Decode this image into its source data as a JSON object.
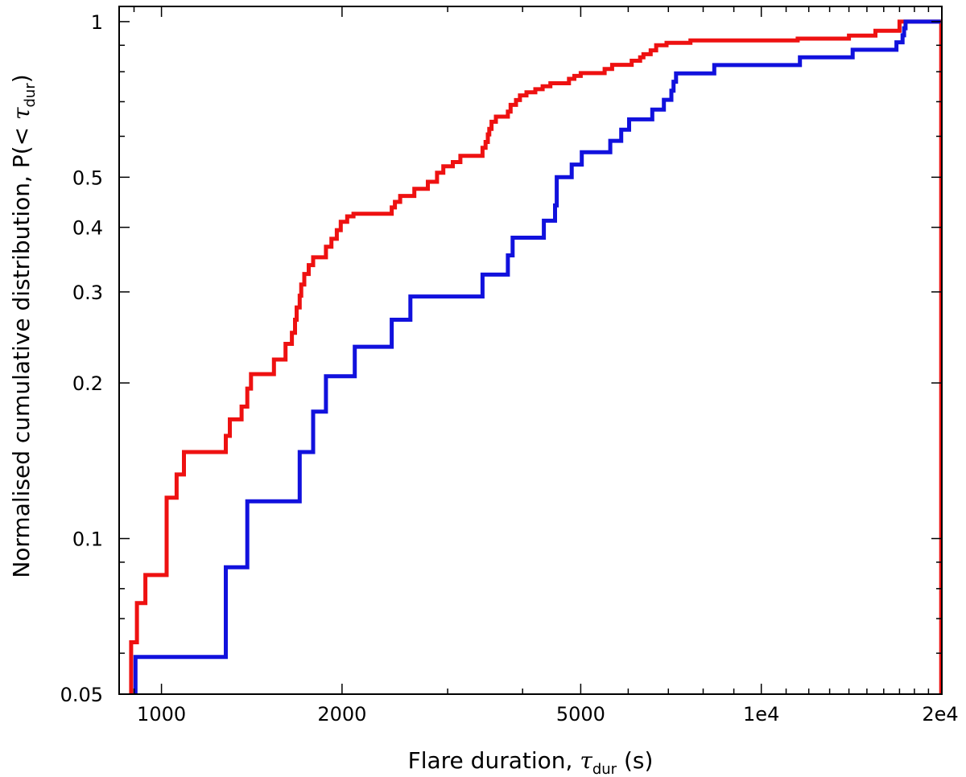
{
  "chart_data": {
    "type": "line",
    "step": true,
    "xscale": "log",
    "yscale": "log",
    "xlim": [
      850,
      20000
    ],
    "ylim": [
      0.05,
      1.07
    ],
    "x_ticks": [
      {
        "value": 1000,
        "label": "1000"
      },
      {
        "value": 2000,
        "label": "2000"
      },
      {
        "value": 5000,
        "label": "5000"
      },
      {
        "value": 10000,
        "label": "1e4"
      },
      {
        "value": 20000,
        "label": "2e4"
      }
    ],
    "y_ticks": [
      {
        "value": 0.05,
        "label": "0.05"
      },
      {
        "value": 0.1,
        "label": "0.1"
      },
      {
        "value": 0.2,
        "label": "0.2"
      },
      {
        "value": 0.3,
        "label": "0.3"
      },
      {
        "value": 0.4,
        "label": "0.4"
      },
      {
        "value": 0.5,
        "label": "0.5"
      },
      {
        "value": 1,
        "label": "1"
      }
    ],
    "xlabel": {
      "prefix": "Flare duration, ",
      "symbol": "τ",
      "subscript": "dur",
      "suffix": " (s)"
    },
    "ylabel": {
      "prefix": "Normalised cumulative distribution, P(< ",
      "symbol": "τ",
      "subscript": "dur",
      "suffix": ")"
    },
    "series": [
      {
        "color": "#ee1111",
        "points": [
          [
            890,
            0.05
          ],
          [
            890,
            0.063
          ],
          [
            910,
            0.063
          ],
          [
            910,
            0.075
          ],
          [
            940,
            0.075
          ],
          [
            940,
            0.085
          ],
          [
            1020,
            0.085
          ],
          [
            1020,
            0.12
          ],
          [
            1060,
            0.12
          ],
          [
            1060,
            0.133
          ],
          [
            1090,
            0.133
          ],
          [
            1090,
            0.147
          ],
          [
            1280,
            0.147
          ],
          [
            1280,
            0.158
          ],
          [
            1300,
            0.158
          ],
          [
            1300,
            0.17
          ],
          [
            1360,
            0.17
          ],
          [
            1360,
            0.18
          ],
          [
            1390,
            0.18
          ],
          [
            1390,
            0.195
          ],
          [
            1410,
            0.195
          ],
          [
            1410,
            0.208
          ],
          [
            1540,
            0.208
          ],
          [
            1540,
            0.222
          ],
          [
            1610,
            0.222
          ],
          [
            1610,
            0.238
          ],
          [
            1650,
            0.238
          ],
          [
            1650,
            0.25
          ],
          [
            1670,
            0.25
          ],
          [
            1670,
            0.265
          ],
          [
            1680,
            0.265
          ],
          [
            1680,
            0.28
          ],
          [
            1700,
            0.28
          ],
          [
            1700,
            0.295
          ],
          [
            1710,
            0.295
          ],
          [
            1710,
            0.31
          ],
          [
            1730,
            0.31
          ],
          [
            1730,
            0.325
          ],
          [
            1760,
            0.325
          ],
          [
            1760,
            0.338
          ],
          [
            1790,
            0.338
          ],
          [
            1790,
            0.35
          ],
          [
            1880,
            0.35
          ],
          [
            1880,
            0.367
          ],
          [
            1920,
            0.367
          ],
          [
            1920,
            0.38
          ],
          [
            1960,
            0.38
          ],
          [
            1960,
            0.395
          ],
          [
            1990,
            0.395
          ],
          [
            1990,
            0.41
          ],
          [
            2040,
            0.41
          ],
          [
            2040,
            0.42
          ],
          [
            2090,
            0.42
          ],
          [
            2090,
            0.425
          ],
          [
            2420,
            0.425
          ],
          [
            2420,
            0.437
          ],
          [
            2450,
            0.437
          ],
          [
            2450,
            0.448
          ],
          [
            2500,
            0.448
          ],
          [
            2500,
            0.46
          ],
          [
            2640,
            0.46
          ],
          [
            2640,
            0.475
          ],
          [
            2780,
            0.475
          ],
          [
            2780,
            0.49
          ],
          [
            2880,
            0.49
          ],
          [
            2880,
            0.51
          ],
          [
            2950,
            0.51
          ],
          [
            2950,
            0.525
          ],
          [
            3060,
            0.525
          ],
          [
            3060,
            0.535
          ],
          [
            3150,
            0.535
          ],
          [
            3150,
            0.55
          ],
          [
            3430,
            0.55
          ],
          [
            3430,
            0.57
          ],
          [
            3470,
            0.57
          ],
          [
            3470,
            0.585
          ],
          [
            3500,
            0.585
          ],
          [
            3500,
            0.605
          ],
          [
            3520,
            0.605
          ],
          [
            3520,
            0.62
          ],
          [
            3550,
            0.62
          ],
          [
            3550,
            0.64
          ],
          [
            3610,
            0.64
          ],
          [
            3610,
            0.655
          ],
          [
            3780,
            0.655
          ],
          [
            3780,
            0.67
          ],
          [
            3820,
            0.67
          ],
          [
            3820,
            0.69
          ],
          [
            3900,
            0.69
          ],
          [
            3900,
            0.705
          ],
          [
            3960,
            0.705
          ],
          [
            3960,
            0.72
          ],
          [
            4060,
            0.72
          ],
          [
            4060,
            0.73
          ],
          [
            4200,
            0.73
          ],
          [
            4200,
            0.74
          ],
          [
            4320,
            0.74
          ],
          [
            4320,
            0.75
          ],
          [
            4450,
            0.75
          ],
          [
            4450,
            0.76
          ],
          [
            4780,
            0.76
          ],
          [
            4780,
            0.775
          ],
          [
            4880,
            0.775
          ],
          [
            4880,
            0.785
          ],
          [
            5000,
            0.785
          ],
          [
            5000,
            0.795
          ],
          [
            5480,
            0.795
          ],
          [
            5480,
            0.81
          ],
          [
            5640,
            0.81
          ],
          [
            5640,
            0.825
          ],
          [
            6080,
            0.825
          ],
          [
            6080,
            0.84
          ],
          [
            6280,
            0.84
          ],
          [
            6280,
            0.853
          ],
          [
            6360,
            0.853
          ],
          [
            6360,
            0.865
          ],
          [
            6540,
            0.865
          ],
          [
            6540,
            0.88
          ],
          [
            6680,
            0.88
          ],
          [
            6680,
            0.9
          ],
          [
            6950,
            0.9
          ],
          [
            6950,
            0.91
          ],
          [
            7620,
            0.91
          ],
          [
            7620,
            0.92
          ],
          [
            11500,
            0.92
          ],
          [
            11500,
            0.927
          ],
          [
            14000,
            0.927
          ],
          [
            14000,
            0.94
          ],
          [
            15500,
            0.94
          ],
          [
            15500,
            0.96
          ],
          [
            17000,
            0.96
          ],
          [
            17000,
            1.0
          ],
          [
            19950,
            1.0
          ],
          [
            19950,
            0.05
          ]
        ]
      },
      {
        "color": "#1111dd",
        "points": [
          [
            905,
            0.05
          ],
          [
            905,
            0.059
          ],
          [
            1280,
            0.059
          ],
          [
            1280,
            0.088
          ],
          [
            1390,
            0.088
          ],
          [
            1390,
            0.118
          ],
          [
            1700,
            0.118
          ],
          [
            1700,
            0.147
          ],
          [
            1790,
            0.147
          ],
          [
            1790,
            0.176
          ],
          [
            1880,
            0.176
          ],
          [
            1880,
            0.206
          ],
          [
            2100,
            0.206
          ],
          [
            2100,
            0.235
          ],
          [
            2420,
            0.235
          ],
          [
            2420,
            0.265
          ],
          [
            2600,
            0.265
          ],
          [
            2600,
            0.294
          ],
          [
            3430,
            0.294
          ],
          [
            3430,
            0.324
          ],
          [
            3780,
            0.324
          ],
          [
            3780,
            0.353
          ],
          [
            3850,
            0.353
          ],
          [
            3850,
            0.382
          ],
          [
            4340,
            0.382
          ],
          [
            4340,
            0.412
          ],
          [
            4530,
            0.412
          ],
          [
            4530,
            0.441
          ],
          [
            4560,
            0.441
          ],
          [
            4560,
            0.5
          ],
          [
            4830,
            0.5
          ],
          [
            4830,
            0.529
          ],
          [
            5020,
            0.529
          ],
          [
            5020,
            0.559
          ],
          [
            5600,
            0.559
          ],
          [
            5600,
            0.588
          ],
          [
            5840,
            0.588
          ],
          [
            5840,
            0.618
          ],
          [
            6020,
            0.618
          ],
          [
            6020,
            0.647
          ],
          [
            6580,
            0.647
          ],
          [
            6580,
            0.676
          ],
          [
            6880,
            0.676
          ],
          [
            6880,
            0.706
          ],
          [
            7080,
            0.706
          ],
          [
            7080,
            0.735
          ],
          [
            7140,
            0.735
          ],
          [
            7140,
            0.765
          ],
          [
            7210,
            0.765
          ],
          [
            7210,
            0.794
          ],
          [
            8350,
            0.794
          ],
          [
            8350,
            0.824
          ],
          [
            11600,
            0.824
          ],
          [
            11600,
            0.853
          ],
          [
            14200,
            0.853
          ],
          [
            14200,
            0.882
          ],
          [
            16800,
            0.882
          ],
          [
            16800,
            0.912
          ],
          [
            17200,
            0.912
          ],
          [
            17200,
            0.941
          ],
          [
            17300,
            0.941
          ],
          [
            17300,
            0.971
          ],
          [
            17400,
            0.971
          ],
          [
            17400,
            1.0
          ],
          [
            19900,
            1.0
          ]
        ]
      }
    ]
  }
}
